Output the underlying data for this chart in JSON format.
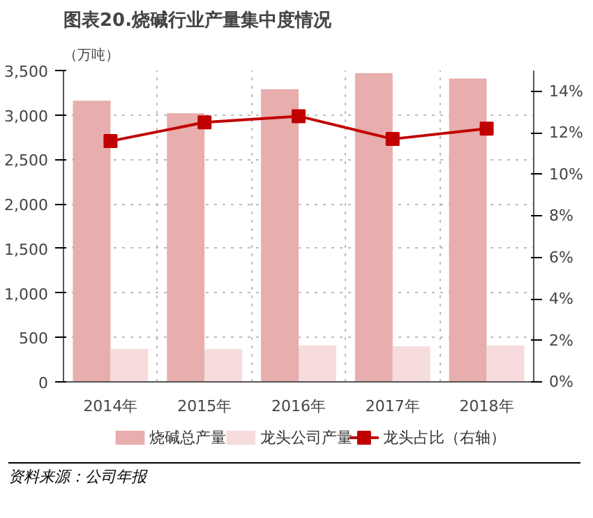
{
  "chart_data": {
    "type": "bar",
    "title": "图表20.烧碱行业产量集中度情况",
    "ylabel": "（万吨）",
    "categories": [
      "2014年",
      "2015年",
      "2016年",
      "2017年",
      "2018年"
    ],
    "series": [
      {
        "name": "烧碱总产量",
        "color": "#e8adad",
        "values": [
          3160,
          3020,
          3290,
          3470,
          3410
        ]
      },
      {
        "name": "龙头公司产量",
        "color": "#f6dcdc",
        "values": [
          370,
          370,
          410,
          400,
          410
        ]
      },
      {
        "name": "龙头占比（右轴）",
        "type": "line",
        "axis": "y2",
        "color": "#c00000",
        "marker": "square",
        "values": [
          11.6,
          12.5,
          12.8,
          11.7,
          12.2
        ]
      }
    ],
    "ylim": [
      0,
      3500
    ],
    "yticks": [
      0,
      {
        "value": 500,
        "label": "500"
      },
      {
        "value": 1000,
        "label": "1,000"
      },
      {
        "value": 1500,
        "label": "1,500"
      },
      {
        "value": 2000,
        "label": "2,000"
      },
      {
        "value": 2500,
        "label": "2,500"
      },
      {
        "value": 3000,
        "label": "3,000"
      },
      {
        "value": 3500,
        "label": "3,500"
      }
    ],
    "y2lim": [
      0,
      15
    ],
    "y2ticks": [
      {
        "value": 0,
        "label": "0%"
      },
      {
        "value": 2,
        "label": "2%"
      },
      {
        "value": 4,
        "label": "4%"
      },
      {
        "value": 6,
        "label": "6%"
      },
      {
        "value": 8,
        "label": "8%"
      },
      {
        "value": 10,
        "label": "10%"
      },
      {
        "value": 12,
        "label": "12%"
      },
      {
        "value": 14,
        "label": "14%"
      }
    ],
    "grid": true,
    "legend": "bottom",
    "annotations": [
      "资料来源：公司年报"
    ]
  }
}
